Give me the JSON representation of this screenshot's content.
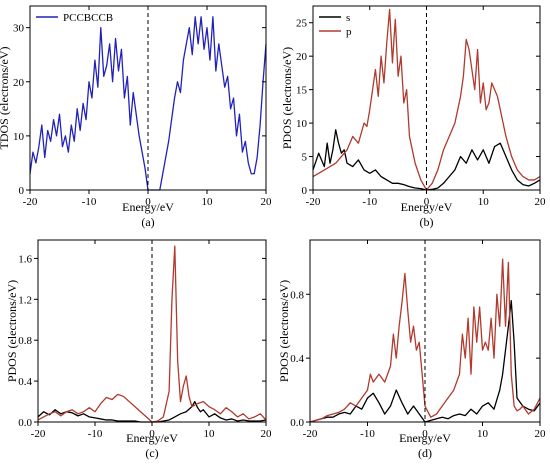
{
  "figure": {
    "panels": [
      "a",
      "b",
      "c",
      "d"
    ]
  },
  "chart_data": [
    {
      "id": "a",
      "type": "line",
      "panel_label": "(a)",
      "xlabel": "Energy/eV",
      "ylabel": "TDOS (electrons/eV)",
      "xlim": [
        -20,
        20
      ],
      "ylim": [
        0,
        34
      ],
      "xticks": [
        -20,
        -10,
        0,
        10,
        20
      ],
      "yticks": [
        0,
        10,
        20,
        30
      ],
      "ytick_labels": [
        "0",
        "10",
        "20",
        "30"
      ],
      "fermi_line_x": 0,
      "legend": "top-left",
      "series": [
        {
          "name": "PCCBCCB",
          "color": "#2222bb",
          "x": [
            -20,
            -19.5,
            -19,
            -18.5,
            -18,
            -17.5,
            -17,
            -16.5,
            -16,
            -15.5,
            -15,
            -14.5,
            -14,
            -13.5,
            -13,
            -12.5,
            -12,
            -11.5,
            -11,
            -10.5,
            -10,
            -9.5,
            -9,
            -8.5,
            -8,
            -7.5,
            -7,
            -6.5,
            -6,
            -5.5,
            -5,
            -4.5,
            -4,
            -3.5,
            -3,
            -2.5,
            -2,
            -1.5,
            -1,
            -0.5,
            0,
            0.5,
            1,
            1.5,
            2,
            2.5,
            3,
            3.5,
            4,
            4.5,
            5,
            5.5,
            6,
            6.5,
            7,
            7.5,
            8,
            8.5,
            9,
            9.5,
            10,
            10.5,
            11,
            11.5,
            12,
            12.5,
            13,
            13.5,
            14,
            14.5,
            15,
            15.5,
            16,
            16.5,
            17,
            17.5,
            18,
            18.5,
            19,
            19.5,
            20
          ],
          "y": [
            3,
            7,
            5,
            8,
            12,
            6,
            11,
            9,
            13,
            10,
            14,
            8,
            10,
            7,
            12,
            9,
            15,
            11,
            16,
            13,
            20,
            17,
            24,
            19,
            30,
            21,
            23,
            27,
            20,
            28,
            22,
            26,
            17,
            21,
            12,
            18,
            14,
            10,
            7,
            4,
            0,
            0,
            0,
            0,
            0,
            3,
            6,
            9,
            13,
            17,
            20,
            18,
            24,
            27,
            30,
            25,
            32,
            27,
            32,
            26,
            30,
            24,
            32,
            22,
            27,
            23,
            19,
            21,
            15,
            17,
            10,
            14,
            7,
            9,
            5,
            3,
            3,
            6,
            12,
            20,
            27
          ]
        }
      ]
    },
    {
      "id": "b",
      "type": "line",
      "panel_label": "(b)",
      "xlabel": "Energy/eV",
      "ylabel": "PDOS (electrons/eV)",
      "xlim": [
        -20,
        20
      ],
      "ylim": [
        0,
        27.5
      ],
      "xticks": [
        -20,
        -10,
        0,
        10,
        20
      ],
      "yticks": [
        0,
        5,
        10,
        15,
        20,
        25
      ],
      "ytick_labels": [
        "0",
        "5",
        "10",
        "15",
        "20",
        "25"
      ],
      "fermi_line_x": 0,
      "legend": "top-left",
      "series": [
        {
          "name": "s",
          "color": "#000000",
          "x": [
            -20,
            -19,
            -18,
            -17.5,
            -17,
            -16.5,
            -16,
            -15.5,
            -15,
            -14.5,
            -14,
            -13,
            -12,
            -11,
            -10,
            -9,
            -8,
            -7,
            -6,
            -5,
            -4,
            -3,
            -2,
            -1,
            0,
            1,
            2,
            3,
            4,
            5,
            6,
            7,
            8,
            9,
            10,
            11,
            12,
            13,
            14,
            15,
            16,
            17,
            18,
            19,
            20
          ],
          "y": [
            3,
            5.5,
            3.5,
            7,
            4,
            6,
            9,
            7,
            5.5,
            6,
            4,
            3.5,
            4.5,
            3,
            2.5,
            3,
            2,
            1.5,
            1,
            1,
            0.8,
            0.5,
            0.3,
            0.2,
            0,
            0.1,
            0.3,
            1,
            2,
            3,
            5,
            4,
            6,
            4.5,
            6,
            4,
            6.5,
            7,
            5,
            3,
            1.5,
            0.8,
            0.6,
            1,
            1.5
          ]
        },
        {
          "name": "p",
          "color": "#b03a2e",
          "x": [
            -20,
            -19,
            -18,
            -17,
            -16,
            -15,
            -14,
            -13,
            -12,
            -11,
            -10.5,
            -10,
            -9,
            -8.5,
            -8,
            -7.5,
            -7,
            -6.5,
            -6,
            -5.5,
            -5,
            -4.5,
            -4,
            -3.5,
            -3,
            -2,
            -1,
            0,
            1,
            2,
            3,
            4,
            5,
            6,
            6.5,
            7,
            7.5,
            8,
            8.5,
            9,
            9.5,
            10,
            10.5,
            11,
            11.5,
            12,
            12.5,
            13,
            14,
            15,
            16,
            17,
            18,
            19,
            20
          ],
          "y": [
            2,
            2.5,
            3,
            3.5,
            4,
            5,
            6,
            8,
            7,
            10,
            9.5,
            12,
            18,
            14,
            20,
            16,
            22,
            27,
            19,
            25.5,
            17,
            20,
            13,
            15,
            8,
            4,
            1.5,
            0,
            1,
            3,
            6,
            8,
            10,
            14,
            17,
            22.5,
            21,
            18,
            15,
            21,
            13,
            16,
            12,
            13,
            16,
            15,
            14,
            12,
            8,
            5,
            3,
            2,
            1.5,
            1.5,
            2
          ]
        }
      ]
    },
    {
      "id": "c",
      "type": "line",
      "panel_label": "(c)",
      "xlabel": "Energy/eV",
      "ylabel": "PDOS (electrons/eV)",
      "xlim": [
        -20,
        20
      ],
      "ylim": [
        0,
        1.78
      ],
      "xticks": [
        -20,
        -10,
        0,
        10,
        20
      ],
      "yticks": [
        0,
        0.4,
        0.8,
        1.2,
        1.6
      ],
      "ytick_labels": [
        "0.0",
        "0.4",
        "0.8",
        "1.2",
        "1.6"
      ],
      "fermi_line_x": 0,
      "legend": "none",
      "series": [
        {
          "name": "",
          "color": "#000000",
          "x": [
            -20,
            -19,
            -18,
            -17,
            -16,
            -15,
            -14,
            -13,
            -12,
            -11,
            -10,
            -9,
            -8,
            -7,
            -6,
            -5,
            -4,
            -3,
            -2,
            -1,
            0,
            1,
            2,
            3,
            4,
            5,
            6,
            7,
            7.5,
            8,
            8.5,
            9,
            10,
            11,
            12,
            13,
            14,
            15,
            16,
            17,
            18,
            19,
            20
          ],
          "y": [
            0.05,
            0.1,
            0.07,
            0.12,
            0.08,
            0.1,
            0.09,
            0.06,
            0.08,
            0.05,
            0.04,
            0.03,
            0.02,
            0.02,
            0.01,
            0.01,
            0.01,
            0.01,
            0,
            0,
            0,
            0,
            0.01,
            0.02,
            0.05,
            0.08,
            0.1,
            0.15,
            0.2,
            0.14,
            0.1,
            0.12,
            0.05,
            0.08,
            0.04,
            0.02,
            0.03,
            0.01,
            0.02,
            0.01,
            0.01,
            0.01,
            0.02
          ]
        },
        {
          "name": "",
          "color": "#b03a2e",
          "x": [
            -20,
            -19,
            -18,
            -17,
            -16,
            -15,
            -14,
            -13,
            -12,
            -11,
            -10,
            -9,
            -8,
            -7,
            -6,
            -5,
            -4,
            -3,
            -2,
            -1,
            0,
            1,
            2,
            3,
            3.5,
            4,
            4.5,
            5,
            5.5,
            6,
            6.5,
            7,
            8,
            9,
            10,
            11,
            12,
            13,
            14,
            15,
            16,
            17,
            18,
            19,
            20
          ],
          "y": [
            0.02,
            0.05,
            0.08,
            0.1,
            0.06,
            0.1,
            0.12,
            0.08,
            0.1,
            0.14,
            0.1,
            0.18,
            0.24,
            0.22,
            0.27,
            0.25,
            0.2,
            0.15,
            0.1,
            0.05,
            0,
            0.01,
            0.05,
            0.3,
            1.2,
            1.72,
            0.6,
            0.2,
            0.35,
            0.45,
            0.25,
            0.15,
            0.18,
            0.2,
            0.15,
            0.12,
            0.08,
            0.14,
            0.1,
            0.05,
            0.08,
            0.03,
            0.05,
            0.08,
            0.02
          ]
        }
      ]
    },
    {
      "id": "d",
      "type": "line",
      "panel_label": "(d)",
      "xlabel": "Energy/eV",
      "ylabel": "PDOS (electrons/eV)",
      "xlim": [
        -20,
        20
      ],
      "ylim": [
        0,
        1.14
      ],
      "xticks": [
        -20,
        -10,
        0,
        10,
        20
      ],
      "yticks": [
        0,
        0.4,
        0.8
      ],
      "ytick_labels": [
        "0.0",
        "0.4",
        "0.8"
      ],
      "fermi_line_x": 0,
      "legend": "none",
      "series": [
        {
          "name": "",
          "color": "#000000",
          "x": [
            -20,
            -19,
            -18,
            -17,
            -16,
            -15,
            -14,
            -13,
            -12,
            -11,
            -10,
            -9,
            -8,
            -7,
            -6,
            -5,
            -4,
            -3,
            -2,
            -1,
            0,
            1,
            2,
            3,
            4,
            5,
            6,
            7,
            8,
            9,
            10,
            11,
            12,
            13,
            13.5,
            14,
            14.5,
            15,
            15.5,
            16,
            17,
            18,
            19,
            20
          ],
          "y": [
            0,
            0.01,
            0.02,
            0.03,
            0.03,
            0.05,
            0.06,
            0.05,
            0.1,
            0.08,
            0.15,
            0.18,
            0.12,
            0.05,
            0.1,
            0.2,
            0.12,
            0.05,
            0.1,
            0.05,
            0,
            0.01,
            0.02,
            0.03,
            0.02,
            0.04,
            0.05,
            0.04,
            0.08,
            0.05,
            0.1,
            0.12,
            0.08,
            0.2,
            0.3,
            0.45,
            0.6,
            0.76,
            0.5,
            0.15,
            0.1,
            0.08,
            0.07,
            0.12
          ]
        },
        {
          "name": "",
          "color": "#b03a2e",
          "x": [
            -20,
            -19,
            -18,
            -17,
            -16,
            -15,
            -14,
            -13,
            -12,
            -11,
            -10,
            -9.5,
            -9,
            -8,
            -7,
            -6,
            -5.5,
            -5,
            -4.5,
            -4,
            -3.5,
            -3,
            -2.5,
            -2,
            -1.5,
            -1,
            0,
            1,
            2,
            3,
            4,
            5,
            6,
            6.5,
            7,
            7.5,
            8,
            8.5,
            9,
            9.5,
            10,
            10.5,
            11,
            11.5,
            12,
            12.5,
            13,
            13.5,
            14,
            14.5,
            15,
            15.5,
            16,
            16.5,
            17,
            18,
            19,
            20
          ],
          "y": [
            0,
            0.01,
            0.02,
            0.04,
            0.05,
            0.06,
            0.08,
            0.12,
            0.1,
            0.15,
            0.2,
            0.3,
            0.25,
            0.3,
            0.25,
            0.35,
            0.55,
            0.4,
            0.6,
            0.75,
            0.93,
            0.7,
            0.5,
            0.6,
            0.45,
            0.5,
            0.1,
            0.03,
            0.05,
            0.1,
            0.15,
            0.2,
            0.3,
            0.55,
            0.4,
            0.65,
            0.3,
            0.72,
            0.5,
            0.72,
            0.45,
            0.5,
            0.45,
            0.65,
            0.4,
            0.8,
            0.6,
            1.02,
            0.6,
            1.0,
            0.3,
            0.1,
            0.07,
            0.08,
            0.1,
            0.05,
            0.08,
            0.15
          ]
        }
      ]
    }
  ]
}
